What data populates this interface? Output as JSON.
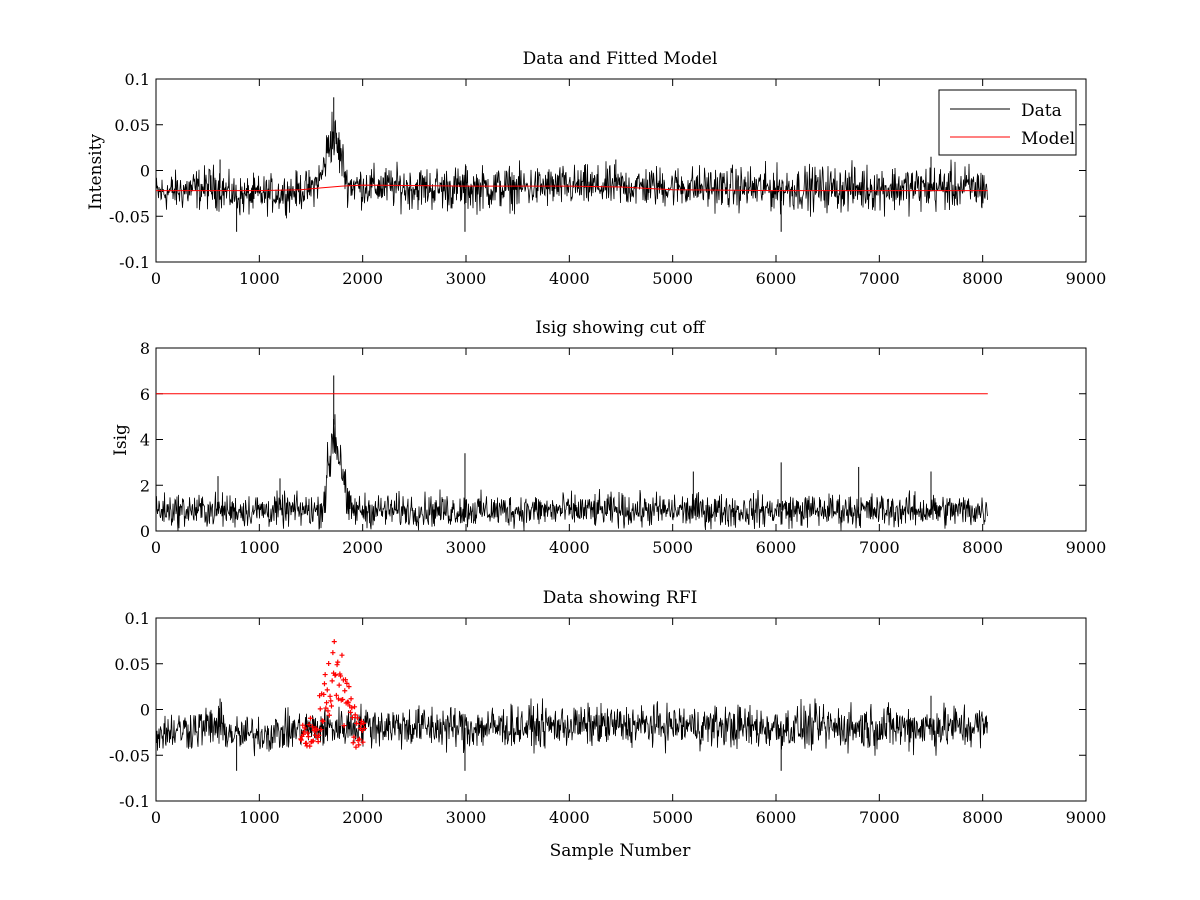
{
  "colors": {
    "data": "#000000",
    "model": "#ff0000",
    "rfi": "#ff0000",
    "axes": "#000000",
    "background": "#ffffff"
  },
  "chart_data": [
    {
      "type": "line",
      "title": "Data and Fitted Model",
      "xlabel": "",
      "ylabel": "Intensity",
      "xlim": [
        0,
        9000
      ],
      "ylim": [
        -0.1,
        0.1
      ],
      "xticks": [
        0,
        1000,
        2000,
        3000,
        4000,
        5000,
        6000,
        7000,
        8000,
        9000
      ],
      "yticks": [
        -0.1,
        -0.05,
        0,
        0.05,
        0.1
      ],
      "xtick_labels": [
        "0",
        "1000",
        "2000",
        "3000",
        "4000",
        "5000",
        "6000",
        "7000",
        "8000",
        "9000"
      ],
      "ytick_labels": [
        "-0.1",
        "-0.05",
        "0",
        "0.05",
        "0.1"
      ],
      "grid": false,
      "legend": {
        "position": "top-right",
        "entries": [
          "Data",
          "Model"
        ]
      },
      "series": [
        {
          "name": "Data",
          "kind": "noise_envelope",
          "x_range": [
            0,
            8050
          ],
          "envelope_x": [
            0,
            600,
            700,
            800,
            1200,
            1500,
            1600,
            1650,
            1700,
            1750,
            1800,
            1850,
            2000,
            3000,
            4000,
            5000,
            6000,
            7000,
            8050
          ],
          "envelope_low": [
            -0.05,
            -0.047,
            -0.05,
            -0.055,
            -0.05,
            -0.045,
            -0.035,
            -0.015,
            0.0,
            -0.01,
            -0.02,
            -0.04,
            -0.045,
            -0.05,
            -0.045,
            -0.045,
            -0.05,
            -0.05,
            -0.05
          ],
          "envelope_high": [
            0.0,
            0.012,
            0.0,
            -0.002,
            0.0,
            0.005,
            0.02,
            0.05,
            0.08,
            0.065,
            0.045,
            0.01,
            0.01,
            0.01,
            0.01,
            0.01,
            0.01,
            0.012,
            0.012
          ],
          "spikes": [
            [
              620,
              0.012
            ],
            [
              780,
              -0.067
            ],
            [
              1720,
              0.08
            ],
            [
              2990,
              -0.067
            ],
            [
              3000,
              0.005
            ],
            [
              4450,
              0.012
            ],
            [
              6050,
              -0.067
            ],
            [
              7500,
              0.015
            ]
          ]
        },
        {
          "name": "Model",
          "kind": "line",
          "x": [
            0,
            1000,
            1400,
            1600,
            1800,
            2000,
            3000,
            4000,
            4500,
            5000,
            6000,
            7000,
            8050
          ],
          "y": [
            -0.022,
            -0.022,
            -0.021,
            -0.019,
            -0.017,
            -0.016,
            -0.017,
            -0.017,
            -0.018,
            -0.021,
            -0.022,
            -0.022,
            -0.022
          ]
        }
      ]
    },
    {
      "type": "line",
      "title": "Isig showing cut off",
      "xlabel": "",
      "ylabel": "Isig",
      "xlim": [
        0,
        9000
      ],
      "ylim": [
        0,
        8
      ],
      "xticks": [
        0,
        1000,
        2000,
        3000,
        4000,
        5000,
        6000,
        7000,
        8000,
        9000
      ],
      "yticks": [
        0,
        2,
        4,
        6,
        8
      ],
      "xtick_labels": [
        "0",
        "1000",
        "2000",
        "3000",
        "4000",
        "5000",
        "6000",
        "7000",
        "8000",
        "9000"
      ],
      "ytick_labels": [
        "0",
        "2",
        "4",
        "6",
        "8"
      ],
      "grid": false,
      "series": [
        {
          "kind": "noise_envelope",
          "x_range": [
            0,
            8050
          ],
          "envelope_x": [
            0,
            1600,
            1650,
            1700,
            1720,
            1750,
            1800,
            1850,
            1900,
            3000,
            5000,
            8050
          ],
          "envelope_low": [
            0,
            0,
            0.5,
            1.5,
            2.5,
            2.0,
            1.0,
            0,
            0,
            0,
            0,
            0
          ],
          "envelope_high": [
            1.8,
            1.8,
            3.5,
            6.0,
            6.8,
            5.5,
            5.0,
            2.0,
            1.8,
            1.8,
            1.8,
            1.8
          ],
          "spikes": [
            [
              600,
              2.4
            ],
            [
              1200,
              2.3
            ],
            [
              1720,
              6.8
            ],
            [
              2990,
              3.4
            ],
            [
              5200,
              2.6
            ],
            [
              6050,
              3.0
            ],
            [
              6800,
              2.8
            ],
            [
              7500,
              2.6
            ]
          ]
        },
        {
          "kind": "line",
          "x": [
            0,
            8050
          ],
          "y": [
            6,
            6
          ]
        }
      ]
    },
    {
      "type": "line",
      "title": "Data showing RFI",
      "xlabel": "Sample Number",
      "ylabel": "",
      "xlim": [
        0,
        9000
      ],
      "ylim": [
        -0.1,
        0.1
      ],
      "xticks": [
        0,
        1000,
        2000,
        3000,
        4000,
        5000,
        6000,
        7000,
        8000,
        9000
      ],
      "yticks": [
        -0.1,
        -0.05,
        0,
        0.05,
        0.1
      ],
      "xtick_labels": [
        "0",
        "1000",
        "2000",
        "3000",
        "4000",
        "5000",
        "6000",
        "7000",
        "8000",
        "9000"
      ],
      "ytick_labels": [
        "-0.1",
        "-0.05",
        "0",
        "0.05",
        "0.1"
      ],
      "grid": false,
      "series": [
        {
          "kind": "noise_envelope",
          "x_range": [
            0,
            8050
          ],
          "envelope_x": [
            0,
            600,
            700,
            800,
            1200,
            1400,
            2000,
            3000,
            4000,
            5000,
            6000,
            7000,
            8050
          ],
          "envelope_low": [
            -0.05,
            -0.047,
            -0.05,
            -0.055,
            -0.05,
            -0.047,
            -0.045,
            -0.05,
            -0.045,
            -0.045,
            -0.05,
            -0.05,
            -0.05
          ],
          "envelope_high": [
            0.0,
            0.012,
            0.0,
            -0.002,
            0.0,
            0.003,
            0.01,
            0.01,
            0.01,
            0.01,
            0.01,
            0.012,
            0.012
          ],
          "spikes": [
            [
              620,
              0.012
            ],
            [
              780,
              -0.067
            ],
            [
              2990,
              -0.067
            ],
            [
              6050,
              -0.067
            ],
            [
              7500,
              0.015
            ]
          ]
        },
        {
          "kind": "markers",
          "x_range": [
            1400,
            2020
          ],
          "envelope_x": [
            1400,
            1500,
            1600,
            1650,
            1700,
            1720,
            1750,
            1800,
            1850,
            1900,
            1950,
            2020
          ],
          "envelope_low": [
            -0.04,
            -0.045,
            -0.035,
            -0.02,
            0.0,
            0.02,
            0.01,
            -0.01,
            -0.03,
            -0.04,
            -0.042,
            -0.035
          ],
          "envelope_high": [
            -0.02,
            -0.005,
            0.02,
            0.05,
            0.07,
            0.08,
            0.065,
            0.06,
            0.04,
            0.01,
            -0.005,
            -0.015
          ]
        }
      ]
    }
  ]
}
